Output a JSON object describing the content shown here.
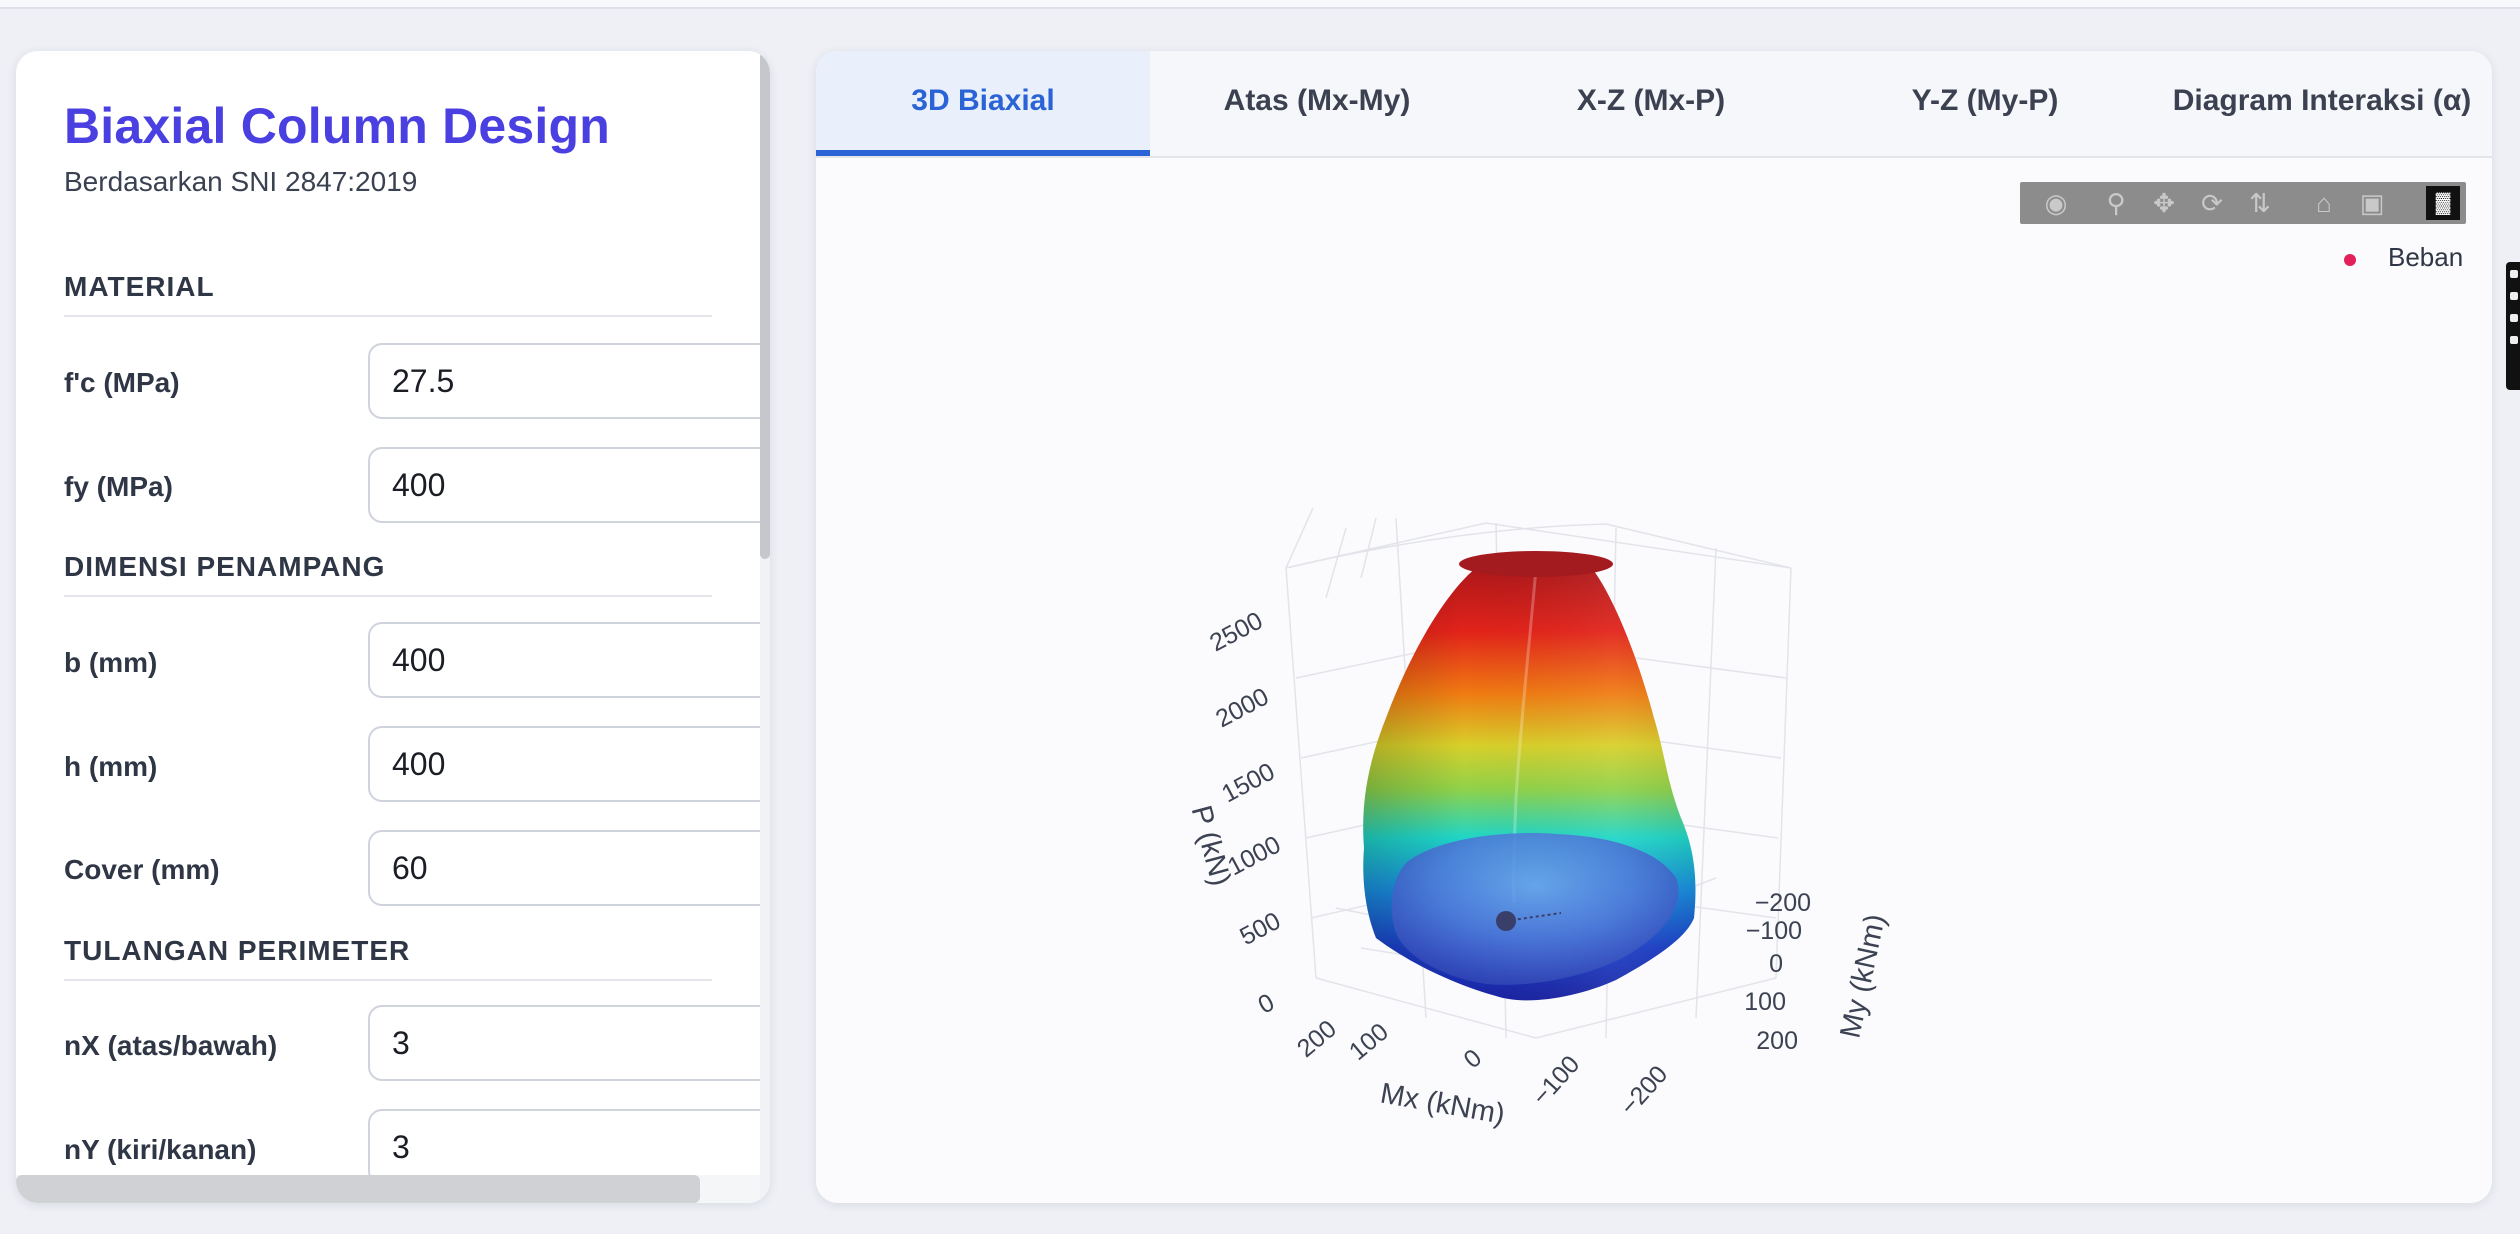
{
  "sidebar": {
    "title": "Biaxial Column Design",
    "subtitle": "Berdasarkan SNI 2847:2019",
    "sections": {
      "material": "MATERIAL",
      "dimensions": "DIMENSI PENAMPANG",
      "rebar": "TULANGAN PERIMETER"
    },
    "fields": {
      "fc": {
        "label": "f'c (MPa)",
        "value": "27.5"
      },
      "fy": {
        "label": "fy (MPa)",
        "value": "400"
      },
      "b": {
        "label": "b (mm)",
        "value": "400"
      },
      "h": {
        "label": "h (mm)",
        "value": "400"
      },
      "cover": {
        "label": "Cover (mm)",
        "value": "60"
      },
      "nx": {
        "label": "nX (atas/bawah)",
        "value": "3"
      },
      "ny": {
        "label": "nY (kiri/kanan)",
        "value": "3"
      }
    }
  },
  "tabs": [
    {
      "label": "3D Biaxial",
      "active": true
    },
    {
      "label": "Atas (Mx-My)",
      "active": false
    },
    {
      "label": "X-Z (Mx-P)",
      "active": false
    },
    {
      "label": "Y-Z (My-P)",
      "active": false
    },
    {
      "label": "Diagram Interaksi (α)",
      "active": false
    }
  ],
  "plot": {
    "legend": {
      "label": "Beban",
      "color": "#e3205a"
    },
    "modebar_icons": [
      "camera-icon",
      "zoom-icon",
      "pan-icon",
      "orbit-icon",
      "turntable-icon",
      "home-icon",
      "camera-view-icon",
      "plotly-logo-icon"
    ],
    "axes": {
      "p_title": "P (kN)",
      "p_ticks": [
        "0",
        "500",
        "1000",
        "1500",
        "2000",
        "2500"
      ],
      "mx_title": "Mx (kNm)",
      "mx_ticks": [
        "200",
        "100",
        "0",
        "−100",
        "−200"
      ],
      "my_title": "My (kNm)",
      "my_ticks": [
        "−200",
        "−100",
        "0",
        "100",
        "200"
      ]
    },
    "colors": {
      "top": "#b01a1a",
      "bottom": "#1a2aa8",
      "accent": "#2a63d6"
    }
  }
}
